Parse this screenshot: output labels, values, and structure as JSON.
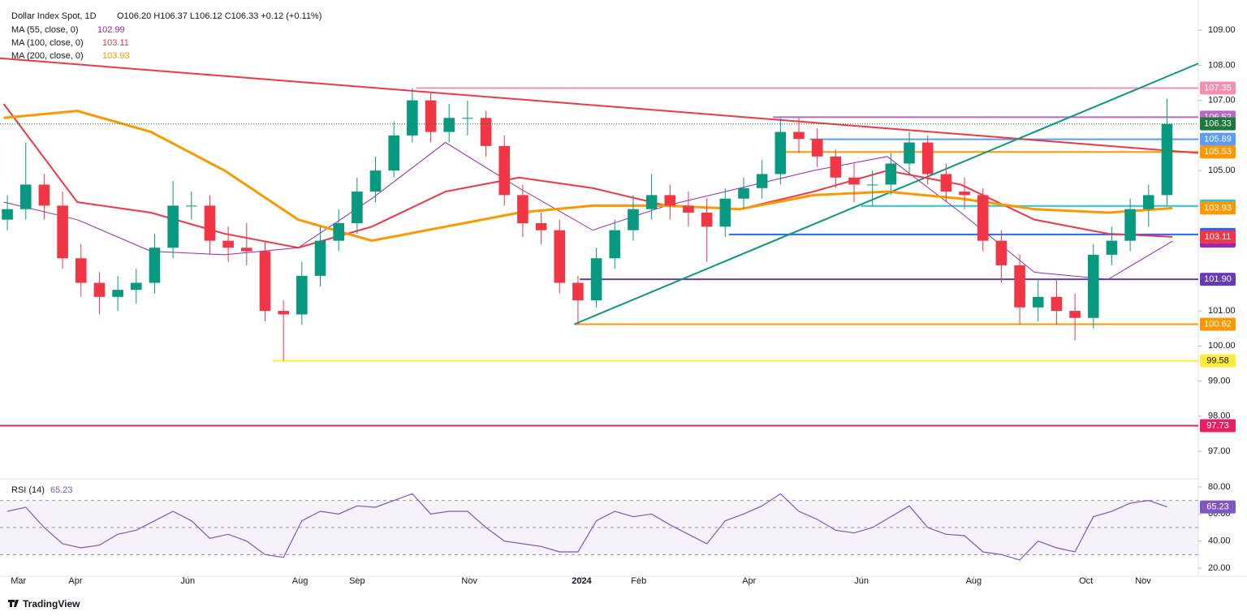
{
  "header": {
    "symbol": "Dollar Index Spot, 1D",
    "ohlc": "O106.20 H106.37 L106.12 C106.33 +0.12 (+0.11%)"
  },
  "branding": "TradingView",
  "chart_data": [
    {
      "type": "candlestick",
      "x": [
        -6,
        4,
        14,
        24,
        34,
        44,
        54,
        64,
        74,
        84,
        94,
        104,
        114,
        124,
        134,
        144,
        154,
        164,
        174,
        184,
        194,
        204,
        214,
        224,
        234,
        244,
        254,
        264,
        274,
        284,
        294,
        304,
        314,
        324,
        334,
        344,
        354,
        364,
        374,
        384,
        394,
        404,
        414,
        424,
        434,
        444,
        454,
        464,
        474,
        484,
        494,
        504,
        514,
        524,
        534,
        544,
        554,
        564,
        574,
        584,
        594,
        604,
        614,
        624
      ],
      "open": [
        103.6,
        103.9,
        104.6,
        104.0,
        102.5,
        101.8,
        101.4,
        101.6,
        101.8,
        102.8,
        104.0,
        104.0,
        103.0,
        102.8,
        102.7,
        101.0,
        100.9,
        102.0,
        103.0,
        103.5,
        104.4,
        105.0,
        106.0,
        107.0,
        106.1,
        106.5,
        106.5,
        105.7,
        104.3,
        103.5,
        103.3,
        101.8,
        101.3,
        102.5,
        103.3,
        103.9,
        104.3,
        104.0,
        103.8,
        103.4,
        104.2,
        104.5,
        104.9,
        106.1,
        105.9,
        105.4,
        104.8,
        104.6,
        104.6,
        105.2,
        105.8,
        104.9,
        104.4,
        104.3,
        103.0,
        102.3,
        101.1,
        101.4,
        101.0,
        100.8,
        102.6,
        103.0,
        103.9,
        104.3
      ],
      "high": [
        104.3,
        105.8,
        104.9,
        104.4,
        102.9,
        102.1,
        102.0,
        102.2,
        103.2,
        104.7,
        104.4,
        104.3,
        103.4,
        103.5,
        103.0,
        101.3,
        102.4,
        103.4,
        103.9,
        104.8,
        105.4,
        106.4,
        107.35,
        107.2,
        106.9,
        107.0,
        106.7,
        106.0,
        104.6,
        103.8,
        103.6,
        102.0,
        102.8,
        103.6,
        104.3,
        104.9,
        104.6,
        104.4,
        104.2,
        104.5,
        104.8,
        105.3,
        106.5,
        106.5,
        106.2,
        105.6,
        105.2,
        105.0,
        105.5,
        106.1,
        106.0,
        105.2,
        104.8,
        104.5,
        103.3,
        102.6,
        101.9,
        101.9,
        101.5,
        102.9,
        103.4,
        104.2,
        104.6,
        107.05
      ],
      "low": [
        103.3,
        103.6,
        103.6,
        102.2,
        101.4,
        100.9,
        101.0,
        101.2,
        101.5,
        102.5,
        103.6,
        102.6,
        102.4,
        102.3,
        100.7,
        99.58,
        100.6,
        101.7,
        102.7,
        103.2,
        104.1,
        104.8,
        105.8,
        105.8,
        105.8,
        106.0,
        105.4,
        104.0,
        103.1,
        102.9,
        101.5,
        100.62,
        101.1,
        102.2,
        103.0,
        103.6,
        103.6,
        103.4,
        102.4,
        103.1,
        103.9,
        104.2,
        104.6,
        105.5,
        105.1,
        104.5,
        104.1,
        104.0,
        104.3,
        104.9,
        104.6,
        104.1,
        103.9,
        102.7,
        101.8,
        100.62,
        100.7,
        100.6,
        100.16,
        100.5,
        102.3,
        102.7,
        103.4,
        104.0
      ],
      "close": [
        103.9,
        104.6,
        104.0,
        102.5,
        101.8,
        101.4,
        101.6,
        101.8,
        102.8,
        104.0,
        104.0,
        103.0,
        102.8,
        102.7,
        101.0,
        100.9,
        102.0,
        103.0,
        103.5,
        104.4,
        105.0,
        106.0,
        107.0,
        106.1,
        106.5,
        106.5,
        105.7,
        104.3,
        103.5,
        103.3,
        101.8,
        101.3,
        102.5,
        103.3,
        103.9,
        104.3,
        104.0,
        103.8,
        103.4,
        104.2,
        104.5,
        104.9,
        106.1,
        105.9,
        105.4,
        104.8,
        104.6,
        104.6,
        105.2,
        105.8,
        104.9,
        104.4,
        104.3,
        103.0,
        102.3,
        101.1,
        101.4,
        101.0,
        100.8,
        102.6,
        103.0,
        103.9,
        104.3,
        106.33
      ],
      "up_color": "#089981",
      "down_color": "#f23645",
      "xlim": [
        -10,
        641
      ],
      "ylim": [
        96.33,
        109.86
      ],
      "xticks": [
        {
          "value": 0,
          "label": "Mar"
        },
        {
          "value": 31,
          "label": "Apr"
        },
        {
          "value": 92,
          "label": "Jun"
        },
        {
          "value": 153,
          "label": "Aug"
        },
        {
          "value": 184,
          "label": "Sep"
        },
        {
          "value": 245,
          "label": "Nov"
        },
        {
          "value": 306,
          "label": "2024"
        },
        {
          "value": 337,
          "label": "Feb"
        },
        {
          "value": 397,
          "label": "Apr"
        },
        {
          "value": 458,
          "label": "Jun"
        },
        {
          "value": 519,
          "label": "Aug"
        },
        {
          "value": 580,
          "label": "Oct"
        },
        {
          "value": 611,
          "label": "Nov"
        }
      ],
      "yticks": [
        {
          "value": 97,
          "label": "97.00"
        },
        {
          "value": 98,
          "label": "98.00"
        },
        {
          "value": 99,
          "label": "99.00"
        },
        {
          "value": 100,
          "label": "100.00"
        },
        {
          "value": 101,
          "label": "101.00"
        },
        {
          "value": 105,
          "label": "105.00"
        },
        {
          "value": 107,
          "label": "107.00"
        },
        {
          "value": 108,
          "label": "108.00"
        },
        {
          "value": 109,
          "label": "109.00"
        }
      ],
      "series": [
        {
          "name": "MA (55, close, 0)",
          "color": "#9c27b0",
          "x": [
            -8,
            32,
            72,
            112,
            152,
            192,
            232,
            272,
            312,
            352,
            392,
            432,
            472,
            512,
            552,
            592,
            627
          ],
          "values": [
            104.1,
            103.6,
            102.7,
            102.6,
            102.8,
            104.2,
            105.8,
            104.5,
            103.3,
            104.0,
            104.5,
            105.0,
            105.4,
            103.8,
            102.1,
            101.9,
            102.99
          ]
        },
        {
          "name": "MA (100, close, 0)",
          "color": "#f23645",
          "x": [
            -8,
            32,
            72,
            112,
            152,
            192,
            232,
            272,
            312,
            352,
            392,
            432,
            472,
            512,
            552,
            592,
            627
          ],
          "values": [
            106.9,
            104.1,
            103.8,
            103.2,
            102.8,
            103.4,
            104.4,
            104.8,
            104.5,
            104.0,
            103.9,
            104.4,
            105.0,
            104.6,
            103.6,
            103.2,
            103.11
          ]
        },
        {
          "name": "MA (200, close, 0)",
          "color": "#ff9800",
          "x": [
            -8,
            32,
            72,
            112,
            152,
            192,
            232,
            272,
            312,
            352,
            392,
            432,
            472,
            512,
            552,
            592,
            627
          ],
          "values": [
            106.5,
            106.7,
            106.1,
            105.0,
            103.6,
            103.0,
            103.4,
            103.8,
            104.0,
            104.0,
            103.9,
            104.3,
            104.4,
            104.2,
            103.9,
            103.8,
            103.93
          ]
        }
      ],
      "levels": [
        {
          "value": 107.35,
          "from": 216,
          "color": "#f48fb1"
        },
        {
          "value": 106.52,
          "from": 410,
          "color": "#ba68c8"
        },
        {
          "value": 105.89,
          "from": 430,
          "color": "#5b9cf6"
        },
        {
          "value": 105.53,
          "from": 412,
          "color": "#ff9800"
        },
        {
          "value": 103.99,
          "from": 458,
          "color": "#26c6da"
        },
        {
          "value": 103.18,
          "from": 386,
          "color": "#2962ff"
        },
        {
          "value": 101.9,
          "label": "101.90",
          "from": 305,
          "color": "#673ab7"
        },
        {
          "value": 100.62,
          "from": 302,
          "color": "#ff9800"
        },
        {
          "value": 99.58,
          "from": 138,
          "color": "#ffeb3b"
        },
        {
          "value": 97.73,
          "from": -10,
          "color": "#e91e63"
        }
      ],
      "trendlines": [
        {
          "color": "#f23645",
          "x": [
            -10,
            641
          ],
          "values": [
            108.2,
            105.5
          ]
        },
        {
          "color": "#089981",
          "x": [
            302,
            641
          ],
          "values": [
            100.62,
            108.05
          ]
        }
      ],
      "last_color": "#1b7a3a"
    },
    {
      "type": "line",
      "name": "RSI (14)",
      "color": "#7e57c2",
      "x": [
        -6,
        4,
        14,
        24,
        34,
        44,
        54,
        64,
        74,
        84,
        94,
        104,
        114,
        124,
        134,
        144,
        154,
        164,
        174,
        184,
        194,
        204,
        214,
        224,
        234,
        244,
        254,
        264,
        274,
        284,
        294,
        304,
        314,
        324,
        334,
        344,
        354,
        364,
        374,
        384,
        394,
        404,
        414,
        424,
        434,
        444,
        454,
        464,
        474,
        484,
        494,
        504,
        514,
        524,
        534,
        544,
        554,
        564,
        574,
        584,
        594,
        604,
        614,
        624
      ],
      "values": [
        62,
        65,
        50,
        38,
        35,
        37,
        45,
        48,
        55,
        62,
        55,
        42,
        45,
        40,
        30,
        28,
        55,
        62,
        60,
        66,
        65,
        70,
        75,
        60,
        62,
        62,
        50,
        40,
        38,
        36,
        32,
        32,
        55,
        62,
        58,
        60,
        52,
        45,
        38,
        55,
        60,
        66,
        75,
        62,
        56,
        48,
        46,
        50,
        58,
        66,
        50,
        45,
        44,
        32,
        30,
        26,
        40,
        35,
        32,
        58,
        62,
        68,
        70,
        65.23
      ],
      "xlim": [
        -10,
        641
      ],
      "ylim": [
        14,
        86
      ],
      "yticks": [
        {
          "value": 20,
          "label": "20.00"
        },
        {
          "value": 40,
          "label": "40.00"
        },
        {
          "value": 60,
          "label": "60.00"
        },
        {
          "value": 80,
          "label": "80.00"
        }
      ],
      "bands": [
        30,
        50,
        70
      ]
    }
  ]
}
